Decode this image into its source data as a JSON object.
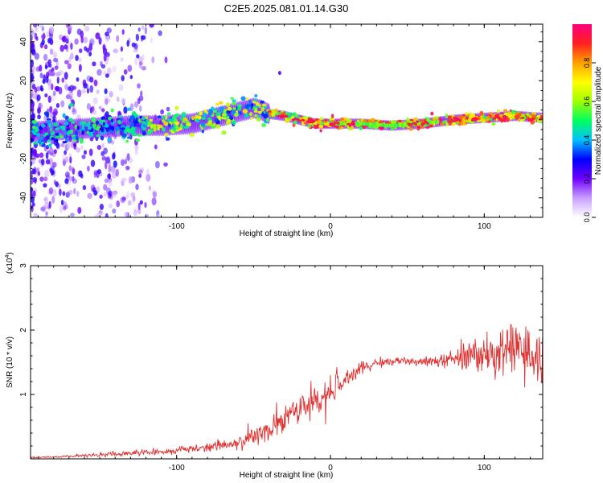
{
  "title": "C2E5.2025.081.01.14.G30",
  "chart_data": [
    {
      "type": "heatmap",
      "xlabel": "Height of straight line (km)",
      "ylabel": "Frequency (Hz)",
      "xlim": [
        -195,
        138
      ],
      "ylim": [
        -50,
        49
      ],
      "xticks": [
        -100,
        0,
        100
      ],
      "xtick_labels": [
        "-100",
        "0",
        "100"
      ],
      "yticks": [
        -40,
        -20,
        0,
        20,
        40
      ],
      "ytick_labels": [
        "-40",
        "-20",
        "0",
        "20",
        "40"
      ],
      "colorbar": {
        "label": "Normalized spectral amplitude",
        "range": [
          0,
          1
        ],
        "ticks": [
          0.0,
          0.2,
          0.4,
          0.6,
          0.8
        ],
        "tick_labels": [
          "0.0",
          "0.2",
          "0.4",
          "0.6",
          "0.8"
        ],
        "colors": [
          "#ffffff",
          "#c8a0ff",
          "#7000ff",
          "#0000ff",
          "#00c0ff",
          "#00ff60",
          "#a0ff00",
          "#ffff00",
          "#ffa000",
          "#ff2020",
          "#ff0080"
        ]
      },
      "ridge": {
        "x": [
          -190,
          -170,
          -150,
          -130,
          -110,
          -90,
          -70,
          -60,
          -50,
          -45,
          -40,
          -30,
          -20,
          -10,
          0,
          10,
          20,
          40,
          60,
          70,
          80,
          100,
          120,
          138
        ],
        "y": [
          -6,
          -5,
          -4,
          -3,
          -3,
          -2,
          2,
          4,
          6,
          5,
          3,
          2,
          0,
          -2,
          -2,
          -2,
          -2,
          -3,
          -2,
          -1,
          0,
          1,
          2,
          1
        ]
      }
    },
    {
      "type": "line",
      "xlabel": "Height of straight line (km)",
      "ylabel": "SNR (10 * v/v)",
      "y_multiplier": "(x10",
      "y_multiplier_exp": "4",
      "y_multiplier_close": ")",
      "xlim": [
        -195,
        138
      ],
      "ylim": [
        0,
        3
      ],
      "xticks": [
        -100,
        0,
        100
      ],
      "xtick_labels": [
        "-100",
        "0",
        "100"
      ],
      "yticks": [
        1,
        2,
        3
      ],
      "ytick_labels": [
        "1",
        "2",
        "3"
      ],
      "color": "#e03030",
      "series": [
        {
          "x": [
            -195,
            -180,
            -160,
            -140,
            -120,
            -100,
            -80,
            -60,
            -50,
            -40,
            -30,
            -20,
            -15,
            -10,
            -5,
            0,
            10,
            20,
            30,
            40,
            60,
            70,
            80,
            90,
            100,
            110,
            120,
            130,
            138
          ],
          "y": [
            0.02,
            0.03,
            0.05,
            0.07,
            0.1,
            0.13,
            0.18,
            0.25,
            0.35,
            0.45,
            0.6,
            0.82,
            0.85,
            0.88,
            0.92,
            1.0,
            1.25,
            1.4,
            1.48,
            1.52,
            1.5,
            1.52,
            1.55,
            1.6,
            1.6,
            1.65,
            1.7,
            1.6,
            1.55
          ],
          "noise": [
            0.01,
            0.01,
            0.02,
            0.03,
            0.04,
            0.05,
            0.06,
            0.08,
            0.12,
            0.15,
            0.18,
            0.2,
            0.22,
            0.22,
            0.2,
            0.2,
            0.15,
            0.08,
            0.05,
            0.04,
            0.05,
            0.08,
            0.15,
            0.2,
            0.25,
            0.32,
            0.4,
            0.45,
            0.45
          ]
        }
      ]
    }
  ]
}
